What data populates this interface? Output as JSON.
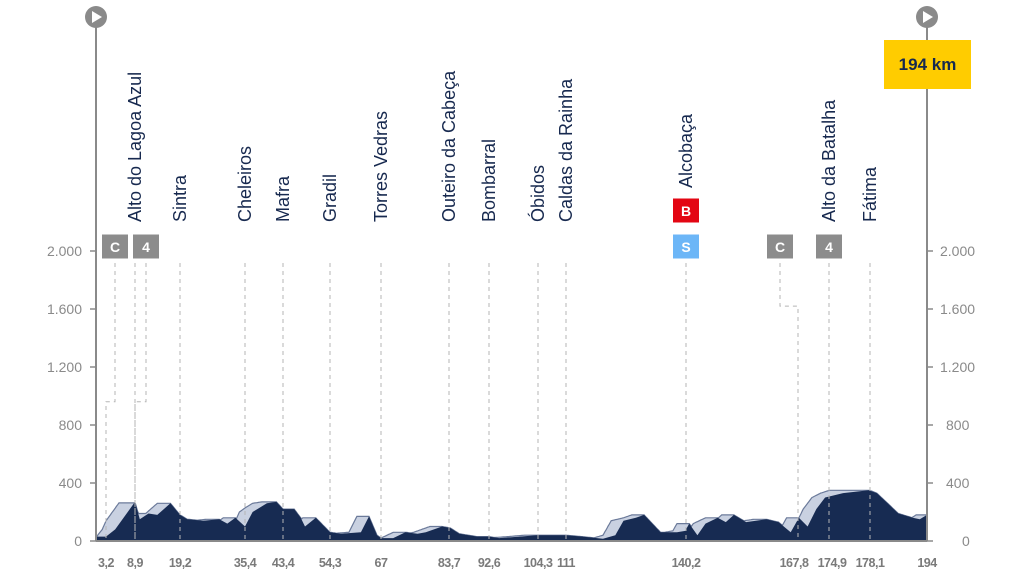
{
  "chart_data": {
    "type": "area",
    "title": "",
    "xlabel": "",
    "ylabel": "",
    "total_distance_label": "194 km",
    "ylim": [
      0,
      2000
    ],
    "yticks": [
      {
        "value": 0,
        "label": "0"
      },
      {
        "value": 400,
        "label": "400"
      },
      {
        "value": 800,
        "label": "800"
      },
      {
        "value": 1200,
        "label": "1.200"
      },
      {
        "value": 1600,
        "label": "1.600"
      },
      {
        "value": 2000,
        "label": "2.000"
      }
    ],
    "xlim": [
      0,
      194
    ],
    "xticks": [
      {
        "value": 3.2,
        "label": "3,2"
      },
      {
        "value": 8.9,
        "label": "8,9"
      },
      {
        "value": 19.2,
        "label": "19,2"
      },
      {
        "value": 35.4,
        "label": "35,4"
      },
      {
        "value": 43.4,
        "label": "43,4"
      },
      {
        "value": 54.3,
        "label": "54,3"
      },
      {
        "value": 67,
        "label": "67"
      },
      {
        "value": 83.7,
        "label": "83,7"
      },
      {
        "value": 92.6,
        "label": "92,6"
      },
      {
        "value": 104.3,
        "label": "104,3"
      },
      {
        "value": 111,
        "label": "111"
      },
      {
        "value": 140.2,
        "label": "140,2"
      },
      {
        "value": 167.8,
        "label": "167,8"
      },
      {
        "value": 174.9,
        "label": "174,9"
      },
      {
        "value": 178.1,
        "label": "178,1"
      },
      {
        "value": 194,
        "label": "194"
      }
    ],
    "places": [
      {
        "km": 8.9,
        "name": "Alto do Lagoa Azul"
      },
      {
        "km": 19.2,
        "name": "Sintra"
      },
      {
        "km": 35.4,
        "name": "Cheleiros"
      },
      {
        "km": 43.4,
        "name": "Mafra"
      },
      {
        "km": 54.3,
        "name": "Gradil"
      },
      {
        "km": 67,
        "name": "Torres Vedras"
      },
      {
        "km": 83.7,
        "name": "Outeiro da Cabeça"
      },
      {
        "km": 92.6,
        "name": "Bombarral"
      },
      {
        "km": 104.3,
        "name": "Óbidos"
      },
      {
        "km": 111,
        "name": "Caldas da Rainha"
      },
      {
        "km": 140.2,
        "name": "Alcobaça"
      },
      {
        "km": 174.9,
        "name": "Alto da Batalha"
      },
      {
        "km": 178.1,
        "name": "Fátima"
      }
    ],
    "badges": [
      {
        "km": 3.2,
        "label": "C",
        "color": "#8c8c8c",
        "row": 1,
        "elbow": 960
      },
      {
        "km": 8.9,
        "label": "4",
        "color": "#8c8c8c",
        "row": 1,
        "elbow": 960
      },
      {
        "km": 140.2,
        "label": "B",
        "color": "#e30613",
        "row": 0
      },
      {
        "km": 140.2,
        "label": "S",
        "color": "#6cb6f7",
        "row": 1
      },
      {
        "km": 167.8,
        "label": "C",
        "color": "#8c8c8c",
        "row": 1,
        "elbow": 1620
      },
      {
        "km": 174.9,
        "label": "4",
        "color": "#8c8c8c",
        "row": 1
      }
    ],
    "profile": [
      [
        0,
        30
      ],
      [
        3.2,
        30
      ],
      [
        5,
        80
      ],
      [
        8.9,
        270
      ],
      [
        10,
        150
      ],
      [
        12,
        190
      ],
      [
        14,
        180
      ],
      [
        17,
        260
      ],
      [
        19.2,
        180
      ],
      [
        21,
        150
      ],
      [
        25,
        140
      ],
      [
        29,
        150
      ],
      [
        31,
        120
      ],
      [
        33,
        160
      ],
      [
        35.4,
        100
      ],
      [
        37,
        200
      ],
      [
        40,
        260
      ],
      [
        42,
        270
      ],
      [
        43.4,
        220
      ],
      [
        46,
        220
      ],
      [
        47.5,
        160
      ],
      [
        48.5,
        100
      ],
      [
        51,
        160
      ],
      [
        54.3,
        60
      ],
      [
        57,
        50
      ],
      [
        62,
        60
      ],
      [
        64,
        170
      ],
      [
        66,
        40
      ],
      [
        67,
        20
      ],
      [
        70,
        20
      ],
      [
        73,
        60
      ],
      [
        76,
        50
      ],
      [
        78,
        60
      ],
      [
        82,
        100
      ],
      [
        84,
        90
      ],
      [
        86,
        50
      ],
      [
        90,
        30
      ],
      [
        92.6,
        30
      ],
      [
        95,
        20
      ],
      [
        100,
        30
      ],
      [
        104,
        40
      ],
      [
        108,
        40
      ],
      [
        111,
        40
      ],
      [
        115,
        30
      ],
      [
        120,
        15
      ],
      [
        123,
        40
      ],
      [
        125,
        140
      ],
      [
        128,
        160
      ],
      [
        130,
        180
      ],
      [
        134,
        60
      ],
      [
        138,
        60
      ],
      [
        140,
        70
      ],
      [
        141,
        120
      ],
      [
        143,
        40
      ],
      [
        145,
        120
      ],
      [
        148,
        160
      ],
      [
        150,
        130
      ],
      [
        152,
        180
      ],
      [
        155,
        130
      ],
      [
        160,
        150
      ],
      [
        163,
        130
      ],
      [
        166,
        60
      ],
      [
        168,
        160
      ],
      [
        170,
        100
      ],
      [
        172,
        220
      ],
      [
        174,
        300
      ],
      [
        176,
        330
      ],
      [
        178,
        350
      ],
      [
        180,
        330
      ],
      [
        183,
        260
      ],
      [
        186,
        190
      ],
      [
        190,
        160
      ],
      [
        192,
        150
      ],
      [
        194,
        180
      ]
    ],
    "colors": {
      "profile": "#172b52",
      "envelope": "#c9d1e1",
      "total_box": "#ffcc00"
    }
  }
}
